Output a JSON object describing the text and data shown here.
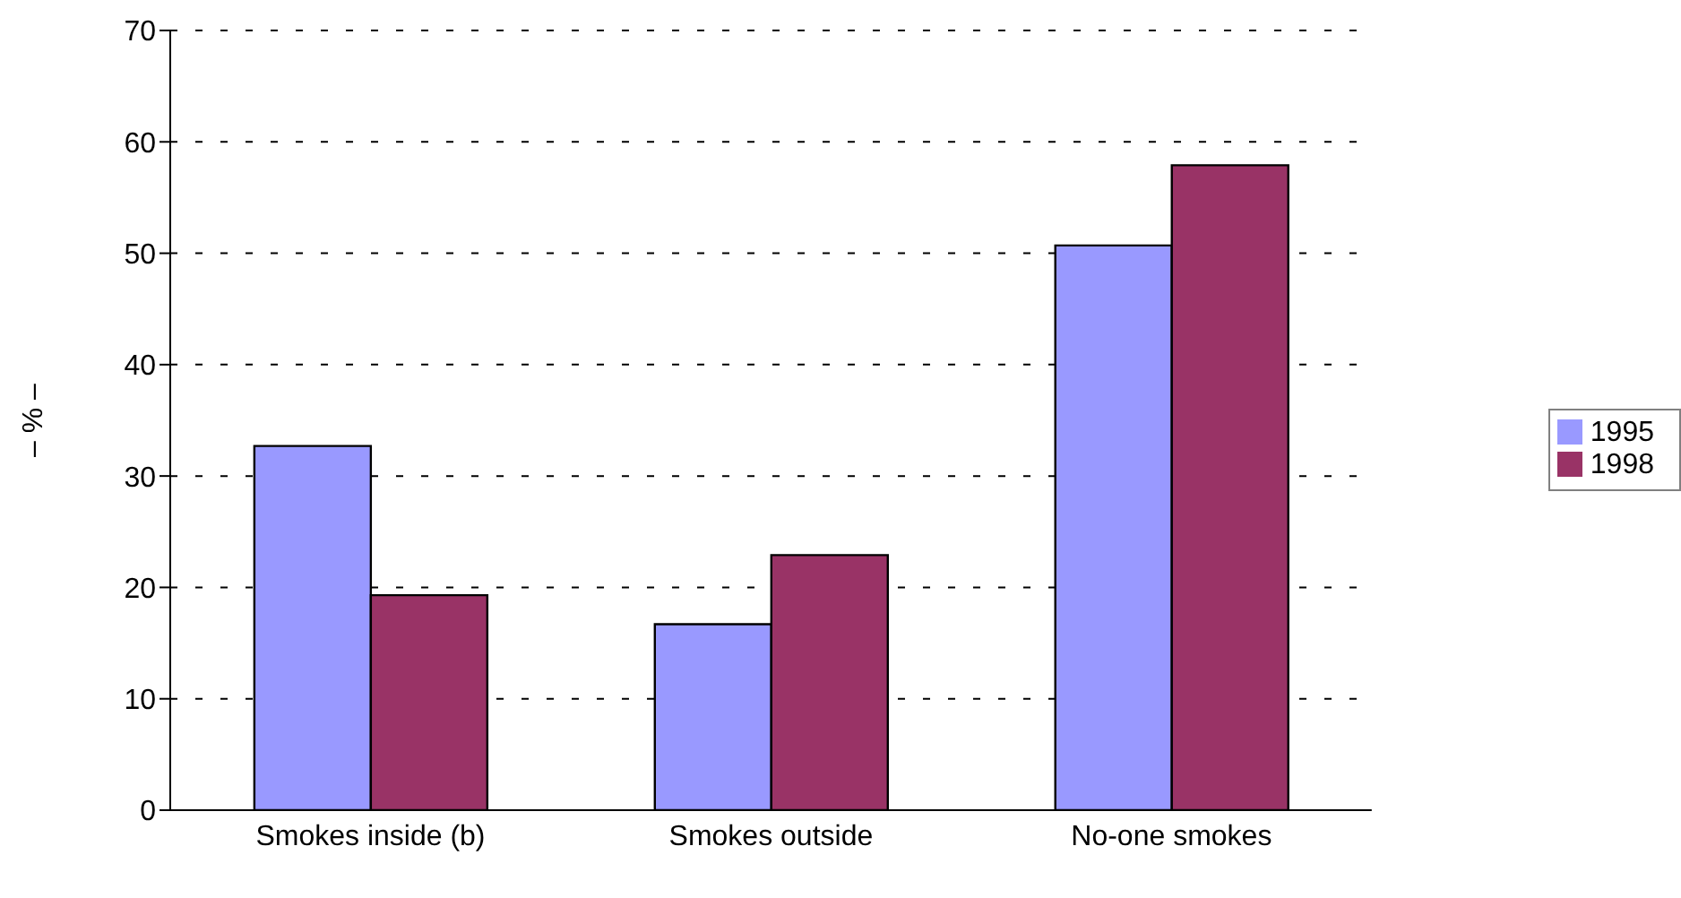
{
  "chart_data": {
    "type": "bar",
    "ylabel": "– % –",
    "categories": [
      "Smokes inside (b)",
      "Smokes outside",
      "No-one smokes"
    ],
    "series": [
      {
        "name": "1995",
        "color": "#9999ff",
        "values": [
          32.7,
          16.7,
          50.7
        ]
      },
      {
        "name": "1998",
        "color": "#993366",
        "values": [
          19.3,
          22.9,
          57.9
        ]
      }
    ],
    "ylim": [
      0,
      70
    ],
    "yticks": [
      0,
      10,
      20,
      30,
      40,
      50,
      60,
      70
    ],
    "grid": "y",
    "legend": "right"
  }
}
